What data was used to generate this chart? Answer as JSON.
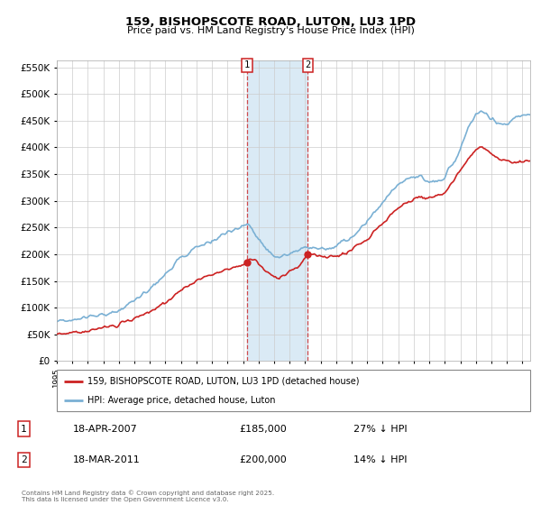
{
  "title": "159, BISHOPSCOTE ROAD, LUTON, LU3 1PD",
  "subtitle": "Price paid vs. HM Land Registry's House Price Index (HPI)",
  "hpi_color": "#7ab0d4",
  "price_color": "#cc2222",
  "shading_color": "#daeaf5",
  "ylim": [
    0,
    562500
  ],
  "yticks": [
    0,
    50000,
    100000,
    150000,
    200000,
    250000,
    300000,
    350000,
    400000,
    450000,
    500000,
    550000
  ],
  "legend_label1": "159, BISHOPSCOTE ROAD, LUTON, LU3 1PD (detached house)",
  "legend_label2": "HPI: Average price, detached house, Luton",
  "annotation1_label": "1",
  "annotation1_date": "18-APR-2007",
  "annotation1_price": "£185,000",
  "annotation1_hpi": "27% ↓ HPI",
  "annotation2_label": "2",
  "annotation2_date": "18-MAR-2011",
  "annotation2_price": "£200,000",
  "annotation2_hpi": "14% ↓ HPI",
  "footer": "Contains HM Land Registry data © Crown copyright and database right 2025.\nThis data is licensed under the Open Government Licence v3.0.",
  "sale1_year": 2007.29,
  "sale2_year": 2011.17,
  "sale1_price": 185000,
  "sale2_price": 200000
}
